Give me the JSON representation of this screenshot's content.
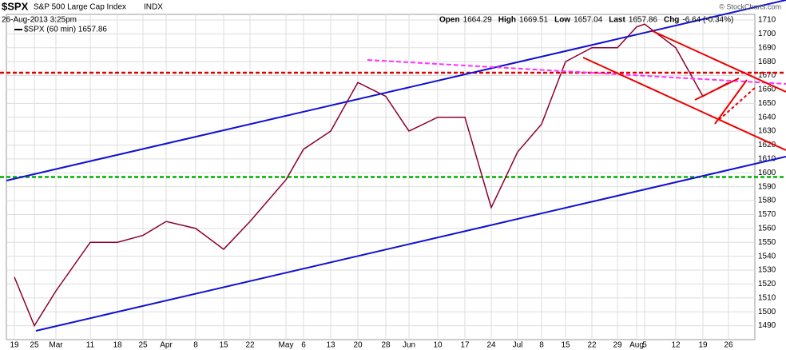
{
  "chart_data": {
    "type": "line",
    "symbol": "$SPX",
    "title": "S&P 500 Large Cap Index",
    "exchange": "INDX",
    "date": "26-Aug-2013 3:25pm",
    "quote": [
      "Open",
      "1664.29",
      "High",
      "1669.51",
      "Low",
      "1657.04",
      "Last",
      "1657.86",
      "Chg",
      "-6.64 (-0.34%)"
    ],
    "legend": "$SPX (60 min) 1657.86",
    "credit": "© StockCharts.com",
    "categories": [
      "19",
      "25",
      "Mar",
      "11",
      "18",
      "25",
      "Apr",
      "8",
      "15",
      "22",
      "May",
      "6",
      "13",
      "20",
      "28",
      "Jun",
      "10",
      "17",
      "24",
      "Jul",
      "8",
      "15",
      "22",
      "29",
      "Aug",
      "5",
      "12",
      "19",
      "26"
    ],
    "series": [
      {
        "name": "$SPX",
        "color": "#8b0030",
        "values": [
          1525,
          1490,
          1515,
          1550,
          1550,
          1555,
          1565,
          1560,
          1545,
          1565,
          1595,
          1617,
          1630,
          1665,
          1655,
          1630,
          1640,
          1640,
          1575,
          1615,
          1635,
          1680,
          1690,
          1690,
          1705,
          1707,
          1690,
          1655,
          1665
        ]
      }
    ],
    "hlines": [
      {
        "value": 1672,
        "color": "#e00000"
      },
      {
        "value": 1597,
        "color": "#00b000"
      }
    ],
    "ylim": [
      1480,
      1714
    ],
    "yticks": [
      1490,
      1500,
      1510,
      1520,
      1530,
      1540,
      1550,
      1560,
      1570,
      1580,
      1590,
      1600,
      1610,
      1620,
      1630,
      1640,
      1650,
      1660,
      1670,
      1680,
      1690,
      1700,
      1710
    ],
    "grid": true
  }
}
